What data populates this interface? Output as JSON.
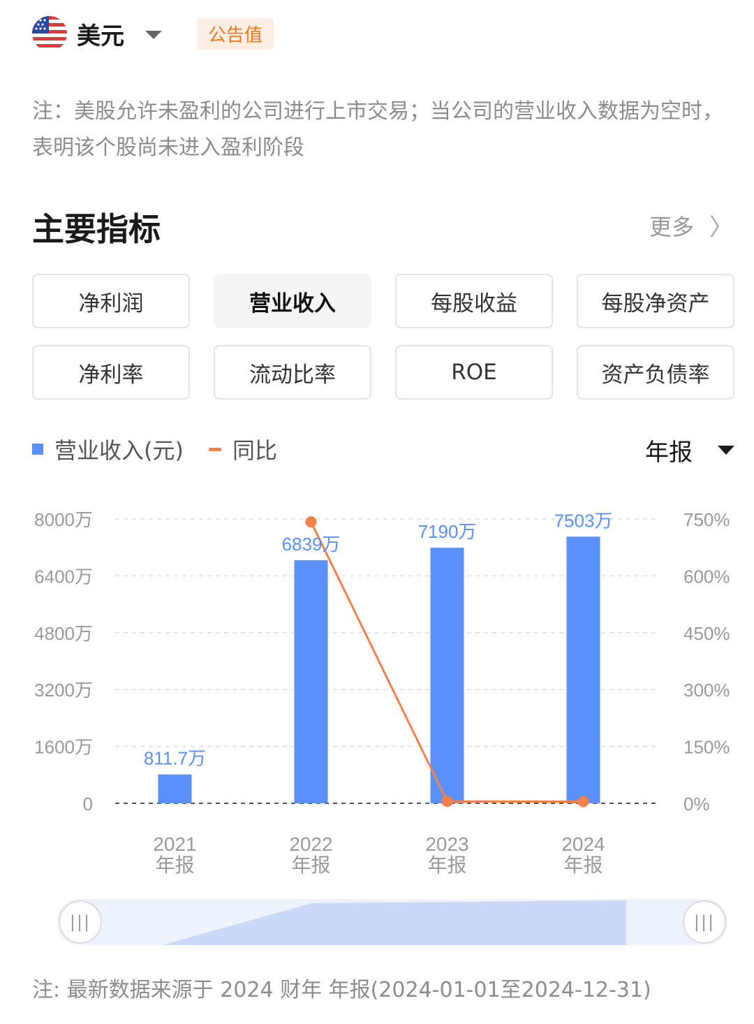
{
  "header": {
    "currency_icon": "us-flag-icon",
    "currency": "美元",
    "badge": "公告值"
  },
  "note_top": "注：美股允许未盈利的公司进行上市交易；当公司的营业收入数据为空时，表明该个股尚未进入盈利阶段",
  "section": {
    "title": "主要指标",
    "more": "更多"
  },
  "tabs": [
    {
      "label": "净利润",
      "active": false
    },
    {
      "label": "营业收入",
      "active": true
    },
    {
      "label": "每股收益",
      "active": false
    },
    {
      "label": "每股净资产",
      "active": false
    },
    {
      "label": "净利率",
      "active": false
    },
    {
      "label": "流动比率",
      "active": false
    },
    {
      "label": "ROE",
      "active": false
    },
    {
      "label": "资产负债率",
      "active": false
    }
  ],
  "legend": {
    "bar": "营业收入(元)",
    "line": "同比"
  },
  "period": "年报",
  "chart_data": {
    "type": "bar",
    "categories": [
      "2021\n年报",
      "2022\n年报",
      "2023\n年报",
      "2024\n年报"
    ],
    "series": [
      {
        "name": "营业收入(元)",
        "type": "bar",
        "color": "#5b8ff9",
        "values": [
          811.7,
          6839,
          7190,
          7503
        ],
        "labels": [
          "811.7万",
          "6839万",
          "7190万",
          "7503万"
        ]
      },
      {
        "name": "同比",
        "type": "line",
        "color": "#f5814a",
        "values": [
          null,
          742.5,
          5.1,
          4.4
        ]
      }
    ],
    "y_left": {
      "min": 0,
      "max": 8000,
      "ticks": [
        0,
        1600,
        3200,
        4800,
        6400,
        8000
      ],
      "tick_labels": [
        "0",
        "1600万",
        "3200万",
        "4800万",
        "6400万",
        "8000万"
      ]
    },
    "y_right": {
      "min": 0,
      "max": 750,
      "ticks": [
        0,
        150,
        300,
        450,
        600,
        750
      ],
      "tick_labels": [
        "0%",
        "150%",
        "300%",
        "450%",
        "600%",
        "750%"
      ]
    },
    "grid": true
  },
  "note_bottom": "注: 最新数据来源于 2024 财年 年报(2024-01-01至2024-12-31)"
}
